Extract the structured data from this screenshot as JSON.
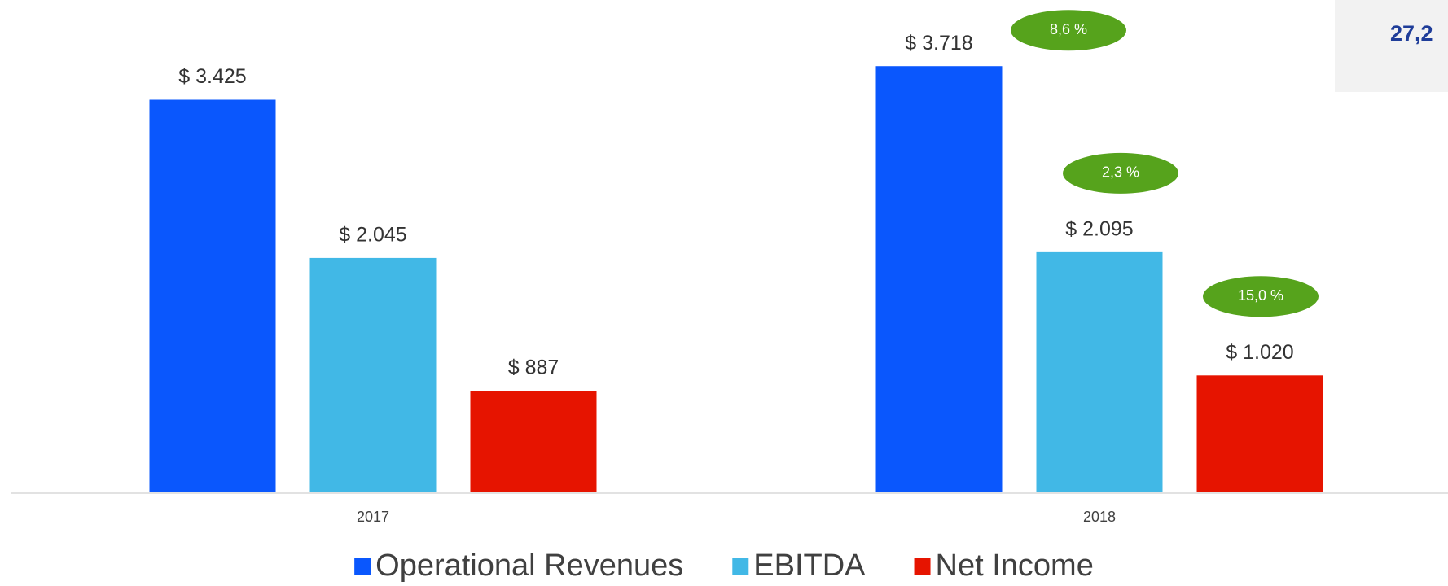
{
  "chart_data": {
    "type": "bar",
    "categories": [
      "2017",
      "2018"
    ],
    "series": [
      {
        "name": "Operational Revenues",
        "color": "#0a57fd",
        "values": [
          3425,
          3718
        ],
        "value_labels": [
          "$ 3.425",
          "$ 3.718"
        ],
        "growth_labels": [
          null,
          "8,6 %"
        ]
      },
      {
        "name": "EBITDA",
        "color": "#41b8e6",
        "values": [
          2045,
          2095
        ],
        "value_labels": [
          "$ 2.045",
          "$ 2.095"
        ],
        "growth_labels": [
          null,
          "2,3 %"
        ]
      },
      {
        "name": "Net Income",
        "color": "#e61400",
        "values": [
          887,
          1020
        ],
        "value_labels": [
          "$ 887",
          "$ 1.020"
        ],
        "growth_labels": [
          null,
          "15,0 %"
        ]
      }
    ],
    "growth_color": "#56a31c",
    "side_note": "27,2",
    "ylim": [
      0,
      4000
    ],
    "grid": false,
    "legend": "bottom"
  }
}
